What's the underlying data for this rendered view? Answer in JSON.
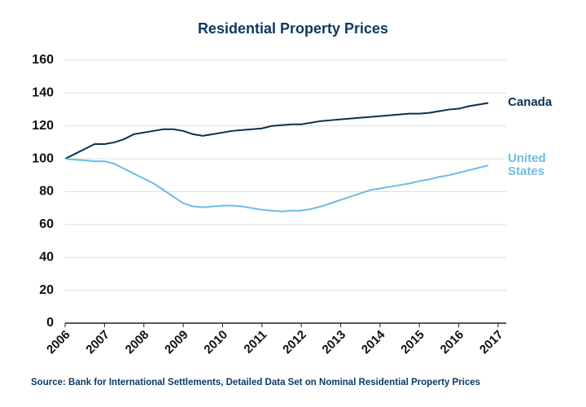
{
  "chart_data": {
    "type": "line",
    "title": "Residential Property Prices",
    "source": "Source: Bank for International Settlements, Detailed Data Set on Nominal Residential Property Prices",
    "x": [
      2006,
      2006.25,
      2006.5,
      2006.75,
      2007,
      2007.25,
      2007.5,
      2007.75,
      2008,
      2008.25,
      2008.5,
      2008.75,
      2009,
      2009.25,
      2009.5,
      2009.75,
      2010,
      2010.25,
      2010.5,
      2010.75,
      2011,
      2011.25,
      2011.5,
      2011.75,
      2012,
      2012.25,
      2012.5,
      2012.75,
      2013,
      2013.25,
      2013.5,
      2013.75,
      2014,
      2014.25,
      2014.5,
      2014.75,
      2015,
      2015.25,
      2015.5,
      2015.75,
      2016,
      2016.25,
      2016.5,
      2016.75
    ],
    "series": [
      {
        "name": "Canada",
        "color": "#0b3050",
        "values": [
          100,
          103,
          106,
          109,
          109,
          110,
          112,
          115,
          116,
          117,
          118,
          118,
          117,
          115,
          114,
          115,
          116,
          117,
          117.5,
          118,
          118.5,
          120,
          120.5,
          121,
          121,
          122,
          123,
          123.5,
          124,
          124.5,
          125,
          125.5,
          126,
          126.5,
          127,
          127.5,
          127.5,
          128,
          129,
          130,
          130.5,
          132,
          133,
          134
        ]
      },
      {
        "name": "United States",
        "color": "#6bbde3",
        "values": [
          100,
          99.5,
          99,
          98.5,
          98.5,
          97,
          94,
          91,
          88,
          85,
          81,
          77,
          73,
          71,
          70.5,
          71,
          71.5,
          71.5,
          71,
          70,
          69,
          68.5,
          68,
          68.5,
          68.5,
          69.5,
          71,
          73,
          75,
          77,
          79,
          81,
          82,
          83,
          84,
          85,
          86.5,
          87.5,
          89,
          90,
          91.5,
          93,
          94.5,
          96
        ]
      }
    ],
    "xlim": [
      2006,
      2017
    ],
    "xticks": [
      2006,
      2007,
      2008,
      2009,
      2010,
      2011,
      2012,
      2013,
      2014,
      2015,
      2016,
      2017
    ],
    "ylim": [
      0,
      160
    ],
    "yticks": [
      0,
      20,
      40,
      60,
      80,
      100,
      120,
      140,
      160
    ],
    "grid": true
  }
}
